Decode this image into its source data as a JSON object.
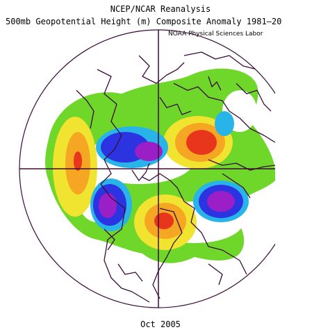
{
  "header": {
    "title_line1": "NCEP/NCAR Reanalysis",
    "title_line2": "500mb Geopotential Height (m) Composite Anomaly 1981–20",
    "credit": "NOAA Physical Sciences Labor"
  },
  "footer": {
    "period": "Oct 2005"
  },
  "map": {
    "projection": "north-polar-stereographic",
    "variable": "500mb geopotential height anomaly",
    "palette": {
      "green": "#6fd62a",
      "yellow": "#f0e430",
      "orange": "#f5a623",
      "red": "#e8361c",
      "cyan": "#28b4e8",
      "blue": "#2b34e0",
      "purple": "#9a1fc6",
      "coastline": "#3a0a3a"
    }
  }
}
